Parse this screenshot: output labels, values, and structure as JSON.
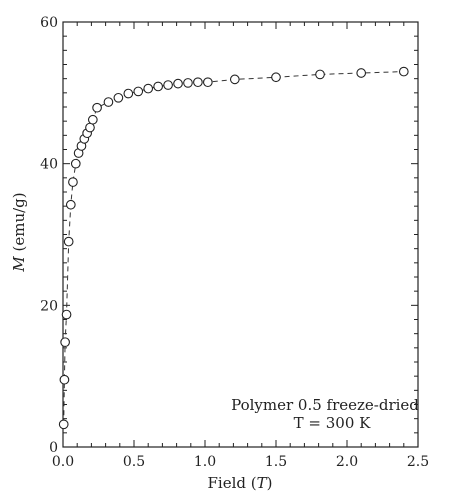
{
  "chart_data": {
    "type": "scatter",
    "title": "",
    "xlabel_main": "Field (",
    "xlabel_var": "T",
    "xlabel_close": ")",
    "ylabel_var": "M",
    "ylabel_units": " (emu/g)",
    "xlim": [
      0.0,
      2.5
    ],
    "ylim": [
      0,
      60
    ],
    "x_ticks": [
      0.0,
      0.5,
      1.0,
      1.5,
      2.0,
      2.5
    ],
    "x_tick_labels": [
      "0.0",
      "0.5",
      "1.0",
      "1.5",
      "2.0",
      "2.5"
    ],
    "y_ticks": [
      0,
      20,
      40,
      60
    ],
    "y_tick_labels": [
      "0",
      "20",
      "40",
      "60"
    ],
    "grid": false,
    "annotations": {
      "line1": "Polymer 0.5 freeze-dried",
      "line2": "T = 300 K"
    },
    "series": [
      {
        "marker": "open-circle",
        "line": "dashed",
        "color": "#222222",
        "x": [
          0.005,
          0.01,
          0.015,
          0.025,
          0.04,
          0.055,
          0.07,
          0.09,
          0.11,
          0.13,
          0.15,
          0.17,
          0.19,
          0.21,
          0.24,
          0.32,
          0.39,
          0.46,
          0.53,
          0.6,
          0.67,
          0.74,
          0.81,
          0.88,
          0.95,
          1.02,
          1.21,
          1.5,
          1.81,
          2.1,
          2.4
        ],
        "y": [
          3.2,
          9.5,
          14.8,
          18.7,
          29.0,
          34.2,
          37.4,
          40.0,
          41.5,
          42.5,
          43.5,
          44.3,
          45.1,
          46.2,
          47.9,
          48.7,
          49.3,
          49.9,
          50.2,
          50.6,
          50.9,
          51.1,
          51.3,
          51.4,
          51.5,
          51.5,
          51.9,
          52.2,
          52.6,
          52.8,
          53.0
        ]
      }
    ]
  }
}
